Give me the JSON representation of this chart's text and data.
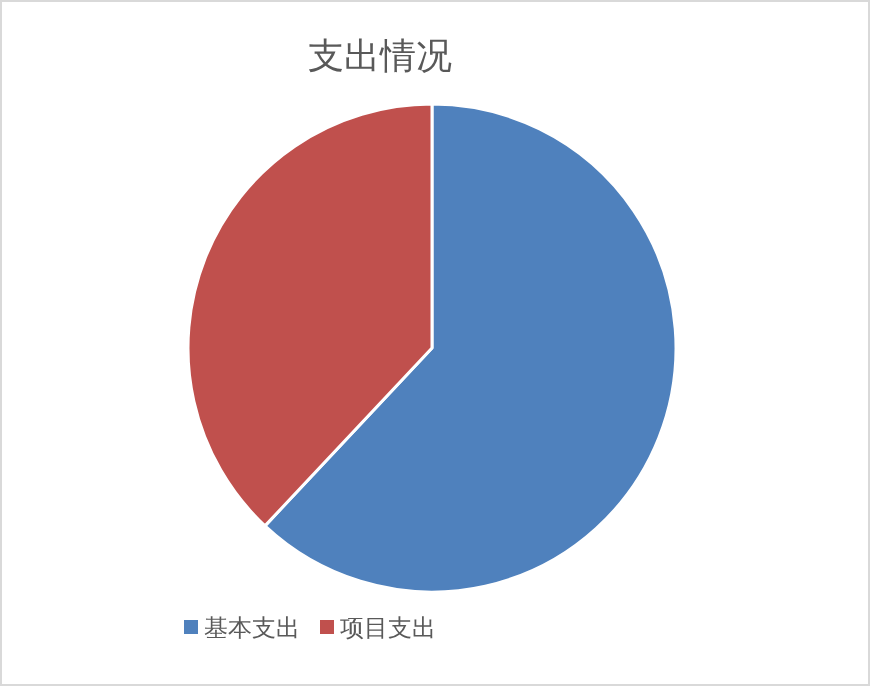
{
  "chart_data": {
    "type": "pie",
    "title": "支出情况",
    "categories": [
      "基本支出",
      "项目支出"
    ],
    "values": [
      62,
      38
    ],
    "colors": [
      "#4f81bd",
      "#c0504d"
    ],
    "legend": "bottom"
  }
}
